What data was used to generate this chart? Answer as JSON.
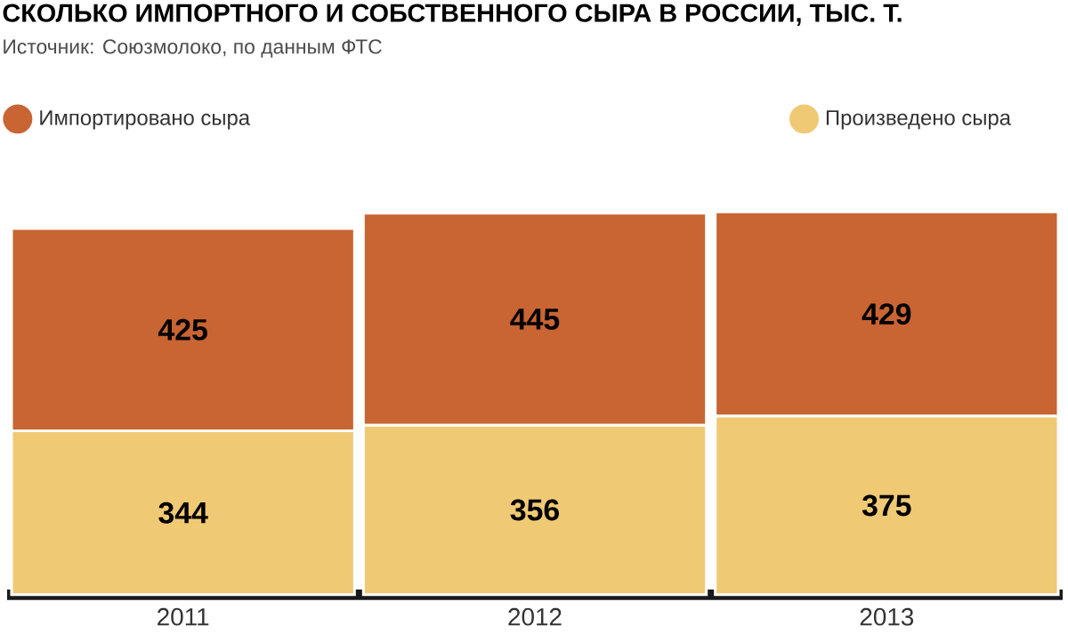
{
  "chart_data": {
    "type": "bar",
    "title": "СКОЛЬКО ИМПОРТНОГО И СОБСТВЕННОГО СЫРА В РОССИИ, ТЫС. Т.",
    "subtitle": "Источник: Союзмолоко, по данным ФТС",
    "categories": [
      "2011",
      "2012",
      "2013"
    ],
    "series": [
      {
        "name": "Произведено сыра",
        "color": "#f0c974",
        "values": [
          344,
          356,
          375
        ]
      },
      {
        "name": "Импортировано сыра",
        "color": "#c96433",
        "values": [
          425,
          445,
          429
        ]
      }
    ],
    "stacked": true,
    "data_labels": true,
    "legend": "top"
  }
}
